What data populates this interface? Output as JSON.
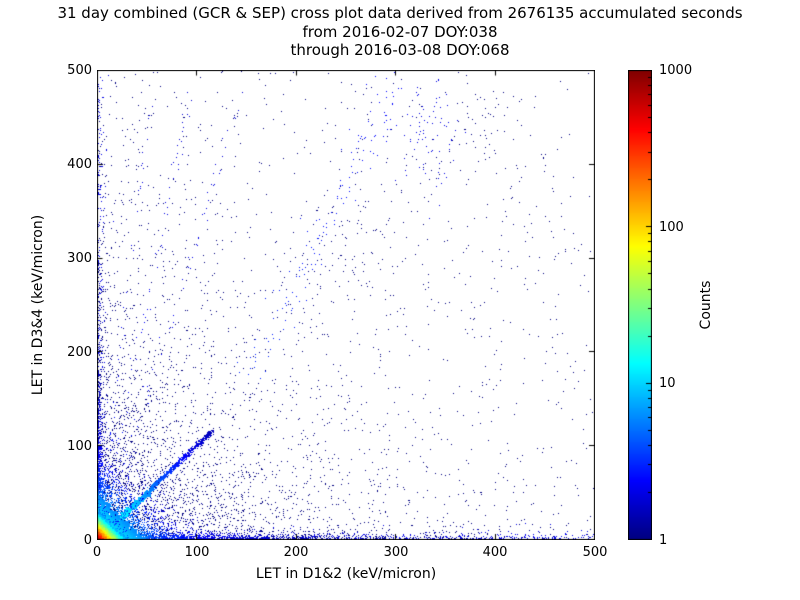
{
  "chart_data": {
    "type": "scatter",
    "title": "31 day combined (GCR & SEP) cross plot data derived from 2676135 accumulated seconds",
    "subtitle_from": "from 2016-02-07 DOY:038",
    "subtitle_through": "through 2016-03-08 DOY:068",
    "accumulated_seconds": 2676135,
    "date_from": "2016-02-07",
    "doy_from": "038",
    "date_through": "2016-03-08",
    "doy_through": "068",
    "xlabel": "LET in D1&2 (keV/micron)",
    "ylabel": "LET in D3&4 (keV/micron)",
    "xlim": [
      0,
      500
    ],
    "ylim": [
      0,
      500
    ],
    "grid": false,
    "xticks": [
      "0",
      "100",
      "200",
      "300",
      "400",
      "500"
    ],
    "yticks": [
      "500",
      "400",
      "300",
      "200",
      "100",
      "0"
    ],
    "colorbar": {
      "label": "Counts",
      "scale": "log",
      "min": 1,
      "max": 1000,
      "ticks": [
        "1000",
        "100",
        "10",
        "1"
      ],
      "tick_values": [
        1000,
        100,
        10,
        1
      ],
      "colormap": "jet"
    },
    "features": [
      "very dense hotspot at the origin with counts approaching 1000 (red/orange core, yellow-green-cyan halo)",
      "bright cyan-green coincidence diagonal y=x from (0,0) to about (115,115)",
      "dense blue low-LET band hugging the x-axis (y<10) extending to x=500",
      "dense blue low-LET band hugging the y-axis (x<10) extending to y=500",
      "diffuse single-count navy scatter across the whole plane, density decreasing away from origin",
      "faint steep streaks radiating from the origin toward the upper plot",
      "secondary diagonal band from about (150,175) to (305,485)",
      "small cluster of points near (335,435) and sparse points in the upper right"
    ],
    "render": {
      "seed": 20160207,
      "clusters": [
        {
          "type": "uniform",
          "n": 850,
          "c": 1
        },
        {
          "type": "diffuse",
          "n": 2600,
          "xscale": 85,
          "yscale": 105,
          "c": 1
        },
        {
          "type": "diffuse",
          "n": 420,
          "xscale": 200,
          "yscale": 30,
          "c": 1
        },
        {
          "type": "bandx",
          "n": 1600,
          "xscale": 110,
          "yscale": 2.5,
          "cmax": 8,
          "falloff": 60
        },
        {
          "type": "bandx_u",
          "n": 520,
          "xmax": 500,
          "yscale": 2.5,
          "c": 2
        },
        {
          "type": "bandy",
          "n": 1000,
          "yscale": 90,
          "xscale": 2.2,
          "cmax": 6,
          "falloff": 60
        },
        {
          "type": "bandy_u",
          "n": 280,
          "ymax": 500,
          "xscale": 2.2,
          "c": 2
        },
        {
          "type": "blob",
          "n": 80,
          "cx": 335,
          "cy": 435,
          "sx": 14,
          "sy": 40,
          "c": 2
        },
        {
          "type": "blob",
          "n": 45,
          "cx": 385,
          "cy": 440,
          "sx": 18,
          "sy": 35,
          "c": 1
        },
        {
          "type": "blob",
          "n": 55,
          "cx": 255,
          "cy": 300,
          "sx": 25,
          "sy": 40,
          "c": 1
        },
        {
          "type": "line",
          "n": 60,
          "x0": 0,
          "y0": 0,
          "x1": 95,
          "y1": 480,
          "jitter": 2.5,
          "cmax": 2,
          "falloff": 500
        },
        {
          "type": "line",
          "n": 45,
          "x0": 0,
          "y0": 0,
          "x1": 55,
          "y1": 480,
          "jitter": 2.0,
          "cmax": 2,
          "falloff": 500
        },
        {
          "type": "line",
          "n": 55,
          "x0": 0,
          "y0": 0,
          "x1": 150,
          "y1": 480,
          "jitter": 3.0,
          "cmax": 2,
          "falloff": 500
        },
        {
          "type": "line",
          "n": 140,
          "x0": 150,
          "y0": 175,
          "x1": 305,
          "y1": 485,
          "jitter": 10,
          "cmax": 2,
          "falloff": 900
        },
        {
          "type": "line",
          "n": 1400,
          "x0": 0,
          "y0": 0,
          "x1": 115,
          "y1": 115,
          "jitter": 1.3,
          "cmax": 30,
          "falloff": 40
        },
        {
          "type": "origin",
          "n": 2500,
          "scale": 22,
          "cmax": 25,
          "falloff": 30
        },
        {
          "type": "origin",
          "n": 4500,
          "scale": 5,
          "cmax": 900,
          "falloff": 6
        }
      ]
    }
  }
}
